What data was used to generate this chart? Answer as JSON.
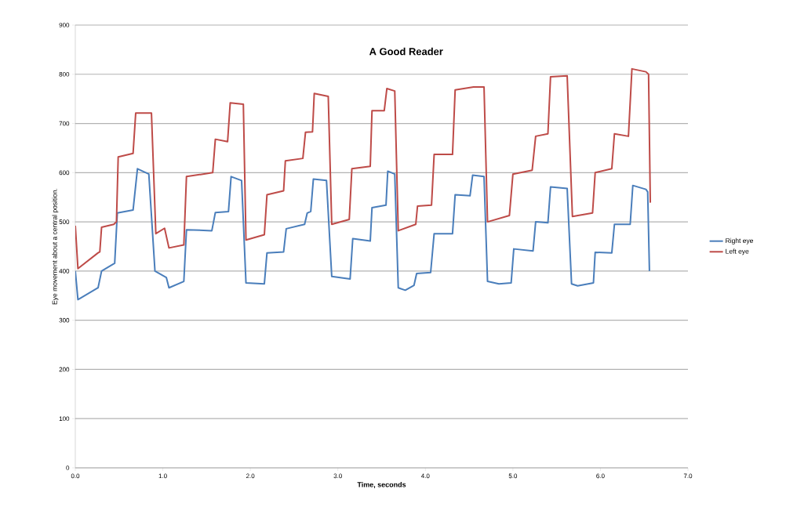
{
  "chart_data": {
    "type": "line",
    "title": "A Good Reader",
    "xlabel": "Time, seconds",
    "ylabel": "Eye movement about a central position.",
    "xlim": [
      0,
      7
    ],
    "ylim": [
      0,
      900
    ],
    "xticks": [
      {
        "value": 0,
        "label": "0.0"
      },
      {
        "value": 1,
        "label": "1.0"
      },
      {
        "value": 2,
        "label": "2.0"
      },
      {
        "value": 3,
        "label": "3.0"
      },
      {
        "value": 4,
        "label": "4.0"
      },
      {
        "value": 5,
        "label": "5.0"
      },
      {
        "value": 6,
        "label": "6.0"
      },
      {
        "value": 7,
        "label": "7.0"
      }
    ],
    "yticks": [
      0,
      100,
      200,
      300,
      400,
      500,
      600,
      700,
      800,
      900
    ],
    "grid": "y",
    "legend": "right",
    "marker": "none",
    "line_style": "solid",
    "series": [
      {
        "name": "Right eye",
        "color": "#4a7ebb",
        "x": [
          0,
          0.03,
          0.26,
          0.3,
          0.45,
          0.48,
          0.66,
          0.71,
          0.84,
          0.91,
          1.04,
          1.07,
          1.24,
          1.27,
          1.56,
          1.6,
          1.75,
          1.78,
          1.9,
          1.95,
          2.16,
          2.19,
          2.38,
          2.41,
          2.62,
          2.65,
          2.69,
          2.72,
          2.87,
          2.93,
          3.14,
          3.17,
          3.37,
          3.39,
          3.55,
          3.57,
          3.65,
          3.69,
          3.77,
          3.87,
          3.9,
          4.06,
          4.1,
          4.31,
          4.34,
          4.51,
          4.54,
          4.67,
          4.71,
          4.84,
          4.98,
          5.01,
          5.23,
          5.26,
          5.4,
          5.43,
          5.62,
          5.67,
          5.74,
          5.92,
          5.94,
          6.13,
          6.16,
          6.34,
          6.37,
          6.52,
          6.54,
          6.56
        ],
        "values": [
          400,
          342,
          366,
          400,
          416,
          518,
          524,
          608,
          597,
          400,
          387,
          366,
          379,
          484,
          482,
          519,
          521,
          592,
          584,
          376,
          374,
          437,
          439,
          486,
          495,
          518,
          521,
          587,
          584,
          389,
          384,
          466,
          461,
          529,
          534,
          603,
          597,
          366,
          361,
          371,
          395,
          397,
          476,
          476,
          555,
          553,
          595,
          592,
          379,
          374,
          376,
          445,
          441,
          500,
          498,
          571,
          568,
          374,
          370,
          376,
          438,
          437,
          495,
          495,
          574,
          566,
          561,
          400
        ]
      },
      {
        "name": "Left eye",
        "color": "#be4b48",
        "x": [
          0,
          0.03,
          0.26,
          0.28,
          0.3,
          0.44,
          0.47,
          0.49,
          0.66,
          0.69,
          0.87,
          0.92,
          1.02,
          1.07,
          1.24,
          1.27,
          1.57,
          1.6,
          1.74,
          1.77,
          1.92,
          1.95,
          2.16,
          2.19,
          2.38,
          2.4,
          2.6,
          2.63,
          2.71,
          2.73,
          2.89,
          2.93,
          3.13,
          3.16,
          3.37,
          3.39,
          3.53,
          3.56,
          3.65,
          3.69,
          3.89,
          3.91,
          4.07,
          4.1,
          4.31,
          4.34,
          4.55,
          4.67,
          4.71,
          4.96,
          5.0,
          5.22,
          5.26,
          5.4,
          5.43,
          5.62,
          5.68,
          5.91,
          5.94,
          6.13,
          6.16,
          6.32,
          6.36,
          6.52,
          6.55,
          6.57
        ],
        "values": [
          492,
          405,
          437,
          439,
          489,
          495,
          500,
          632,
          639,
          721,
          721,
          476,
          487,
          447,
          453,
          592,
          600,
          668,
          663,
          742,
          739,
          463,
          474,
          555,
          563,
          624,
          629,
          682,
          683,
          761,
          755,
          495,
          505,
          608,
          613,
          726,
          726,
          771,
          766,
          482,
          495,
          532,
          534,
          637,
          637,
          768,
          774,
          774,
          500,
          513,
          597,
          605,
          674,
          679,
          795,
          797,
          511,
          518,
          600,
          608,
          679,
          674,
          811,
          805,
          800,
          539
        ]
      }
    ]
  }
}
